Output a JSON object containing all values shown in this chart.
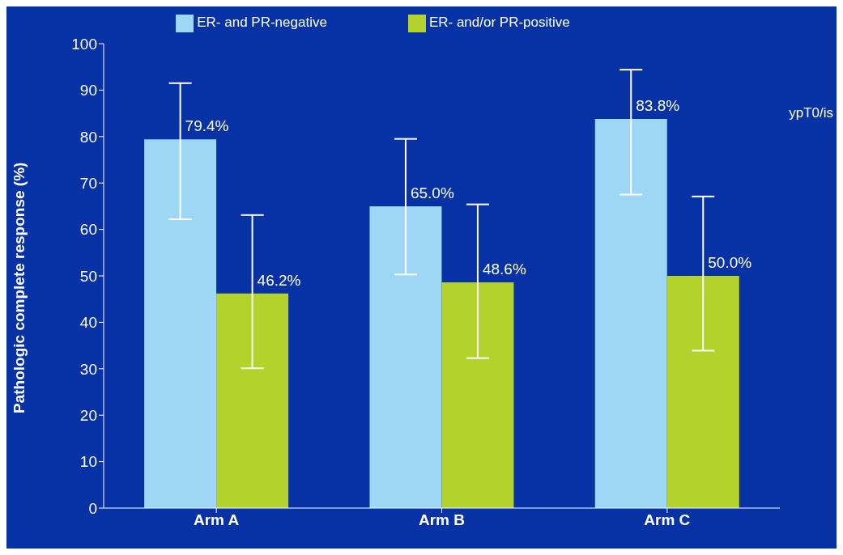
{
  "chart_data": {
    "type": "bar",
    "ylabel": "Pathologic complete response (%)",
    "categories": [
      "Arm A",
      "Arm B",
      "Arm C"
    ],
    "series": [
      {
        "name": "ER- and PR-negative",
        "color": "#9dd7f5",
        "values": [
          79.4,
          65.0,
          83.8
        ],
        "errors": [
          [
            62.2,
            91.5
          ],
          [
            50.3,
            79.5
          ],
          [
            67.5,
            94.4
          ]
        ],
        "value_labels": [
          "79.4%",
          "65.0%",
          "83.8%"
        ]
      },
      {
        "name": "ER- and/or PR-positive",
        "color": "#b4d22c",
        "values": [
          46.2,
          48.6,
          50.0
        ],
        "errors": [
          [
            30.1,
            63.1
          ],
          [
            32.3,
            65.4
          ],
          [
            33.9,
            67.1
          ]
        ],
        "value_labels": [
          "46.2%",
          "48.6%",
          "50.0%"
        ]
      }
    ],
    "ylim": [
      0,
      100
    ],
    "yticks": [
      0,
      10,
      20,
      30,
      40,
      50,
      60,
      70,
      80,
      90,
      100
    ],
    "grid": false,
    "legend": "top",
    "annotations": [
      "ypT0/is"
    ]
  }
}
